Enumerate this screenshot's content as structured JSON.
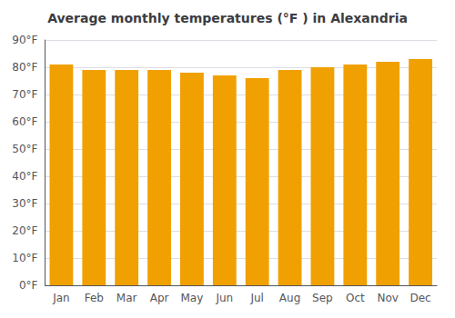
{
  "chart_data": {
    "type": "bar",
    "title": "Average monthly temperatures (°F ) in Alexandria",
    "categories": [
      "Jan",
      "Feb",
      "Mar",
      "Apr",
      "May",
      "Jun",
      "Jul",
      "Aug",
      "Sep",
      "Oct",
      "Nov",
      "Dec"
    ],
    "values": [
      81,
      79,
      79,
      79,
      78,
      77,
      76,
      79,
      80,
      81,
      82,
      83
    ],
    "color": "#F0A000",
    "ylim": [
      0,
      90
    ],
    "yticks": [
      {
        "value": 0,
        "label": "0°F"
      },
      {
        "value": 10,
        "label": "10°F"
      },
      {
        "value": 20,
        "label": "20°F"
      },
      {
        "value": 30,
        "label": "30°F"
      },
      {
        "value": 40,
        "label": "40°F"
      },
      {
        "value": 50,
        "label": "50°F"
      },
      {
        "value": 60,
        "label": "60°F"
      },
      {
        "value": 70,
        "label": "70°F"
      },
      {
        "value": 80,
        "label": "80°F"
      },
      {
        "value": 90,
        "label": "90°F"
      }
    ],
    "grid": true
  }
}
